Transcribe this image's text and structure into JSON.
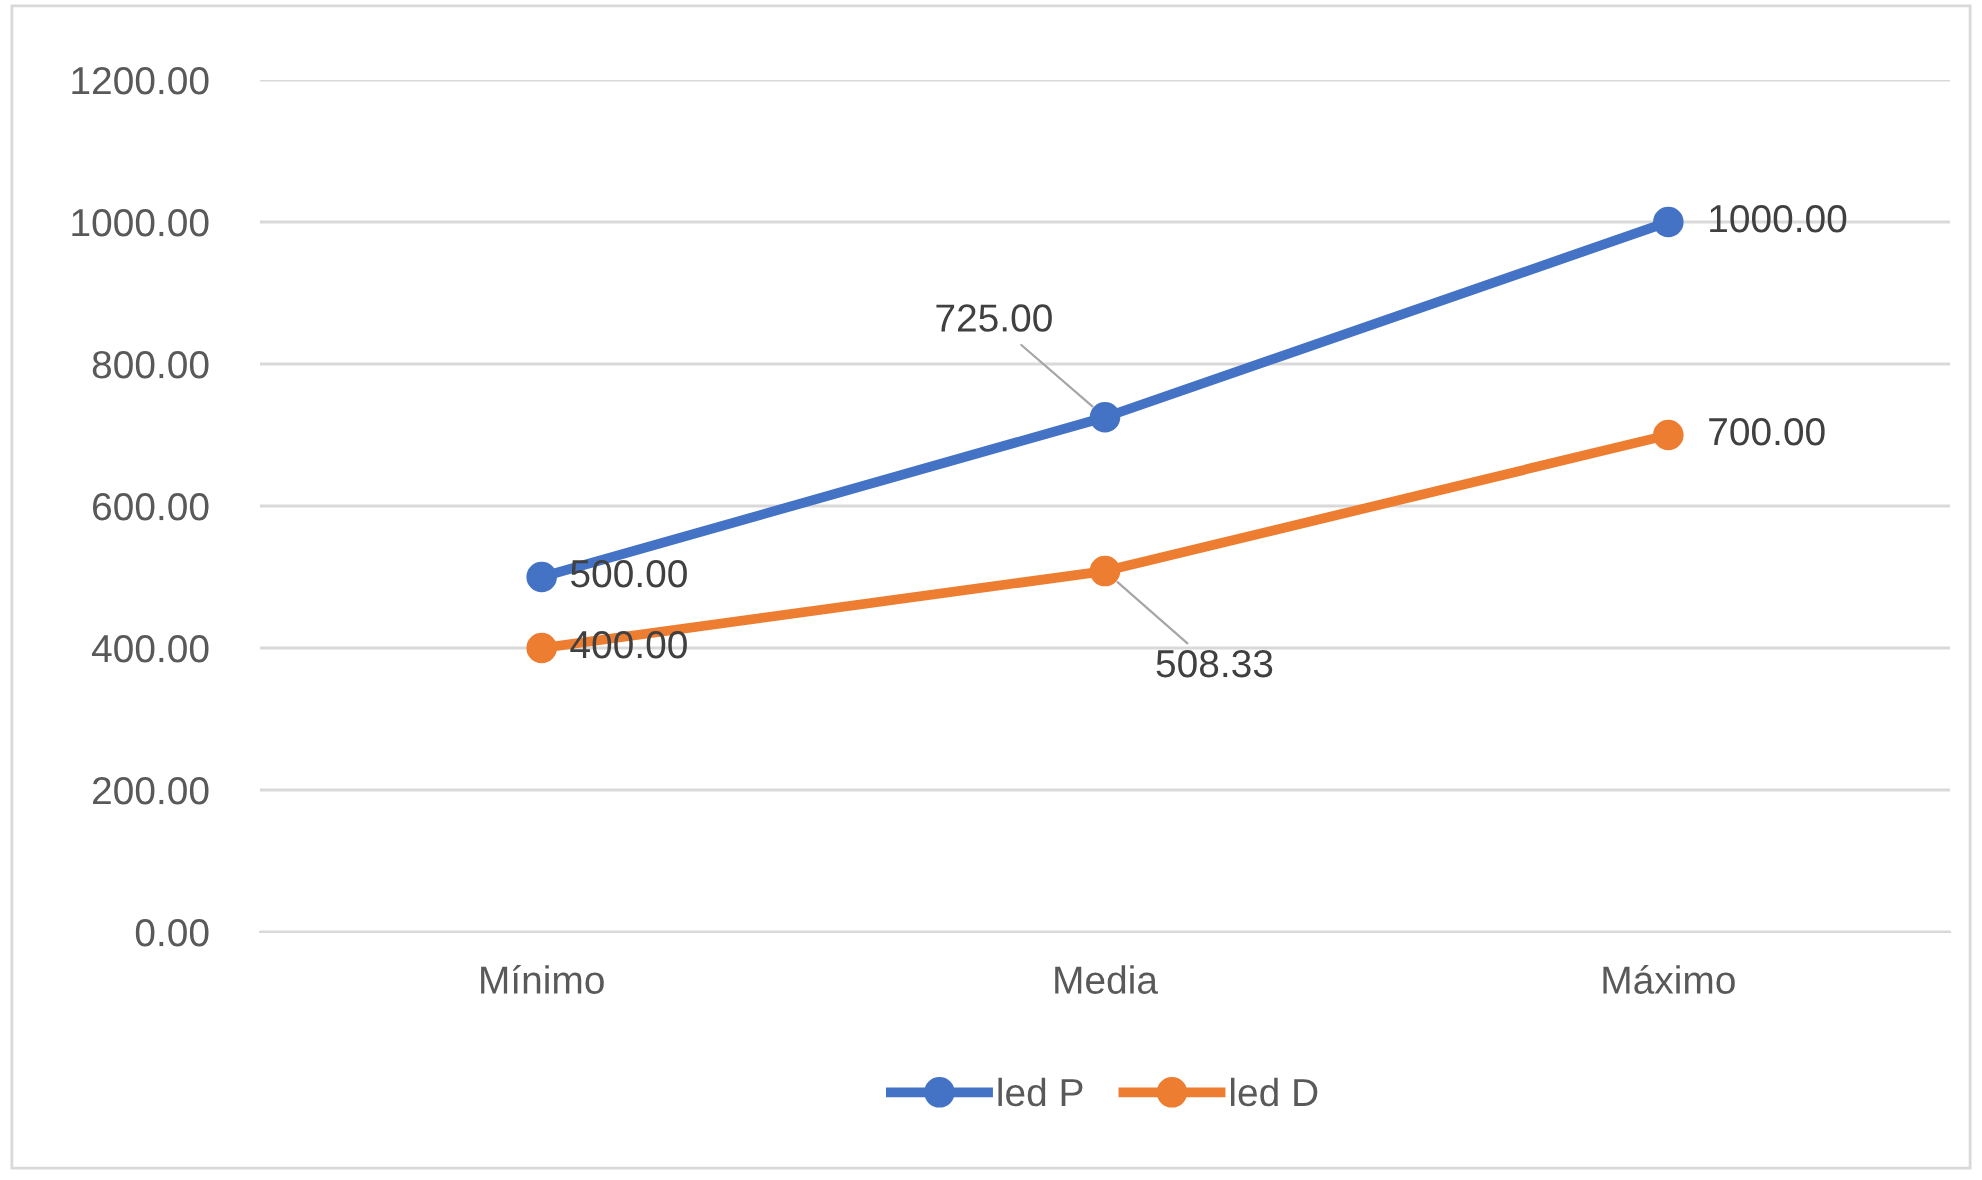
{
  "chart_data": {
    "type": "line",
    "categories": [
      "Mínimo",
      "Media",
      "Máximo"
    ],
    "series": [
      {
        "name": "led P",
        "color": "#4472c4",
        "values": [
          500,
          725,
          1000
        ],
        "value_labels": [
          "500.00",
          "725.00",
          "1000.00"
        ]
      },
      {
        "name": "led D",
        "color": "#ed7d31",
        "values": [
          400,
          508.33,
          700
        ],
        "value_labels": [
          "400.00",
          "508.33",
          "700.00"
        ]
      }
    ],
    "ylim": [
      0,
      1200
    ],
    "yticks": [
      {
        "value": 0,
        "label": "0.00"
      },
      {
        "value": 200,
        "label": "200.00"
      },
      {
        "value": 400,
        "label": "400.00"
      },
      {
        "value": 600,
        "label": "600.00"
      },
      {
        "value": 800,
        "label": "800.00"
      },
      {
        "value": 1000,
        "label": "1000.00"
      },
      {
        "value": 1200,
        "label": "1200.00"
      }
    ],
    "grid": "y",
    "legend": "bottom",
    "marker": "circle",
    "line_style": "solid"
  }
}
